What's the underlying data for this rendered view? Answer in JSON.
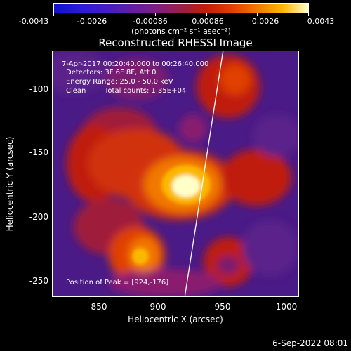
{
  "colorbar": {
    "ticks": [
      "-0.0043",
      "-0.0026",
      "-0.00086",
      "0.00086",
      "0.0026",
      "0.0043"
    ],
    "units": "(photons cm⁻² s⁻¹ asec⁻²)",
    "colors": [
      "#1010d0",
      "#6a1e9a",
      "#c01e0a",
      "#f27800",
      "#ffffc8"
    ]
  },
  "title": "Reconstructed RHESSI Image",
  "annotations": {
    "time_range": "7-Apr-2017 00:20:40.000 to 00:26:40.000",
    "detectors": "Detectors: 3F 6F 8F, Att 0",
    "energy": "Energy Range: 25.0 - 50.0 keV",
    "method": "Clean",
    "counts": "Total counts: 1.35E+04",
    "peak": "Position of Peak = [924,-176]"
  },
  "axes": {
    "xlabel": "Heliocentric X (arcsec)",
    "ylabel": "Heliocentric Y (arcsec)",
    "xticks": [
      "850",
      "900",
      "950",
      "1000"
    ],
    "yticks": [
      "-100",
      "-150",
      "-200",
      "-250"
    ],
    "xrange": [
      818,
      1008
    ],
    "yrange": [
      -266,
      -77
    ]
  },
  "footer_date": "6-Sep-2022 08:01"
}
